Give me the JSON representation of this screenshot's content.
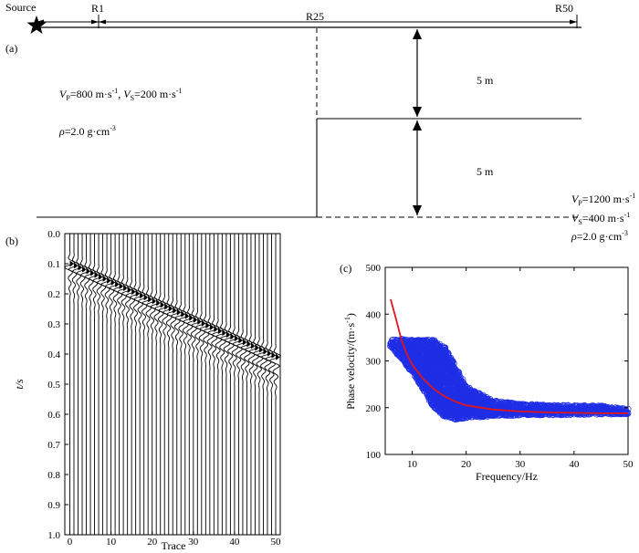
{
  "panel_a": {
    "label": "(a)",
    "source_label": "Source",
    "receivers": {
      "first": "R1",
      "middle": "R25",
      "last": "R50"
    },
    "layer1": {
      "vp": "800 m·s",
      "vs": "200 m·s",
      "rho": "=2.0 g·cm"
    },
    "layer2": {
      "vp": "=1200 m·s",
      "vs": "=400 m·s",
      "rho": "=2.0 g·cm"
    },
    "thickness_upper": "5 m",
    "thickness_lower": "5 m"
  },
  "panel_b": {
    "label": "(b)",
    "xlabel": "Trace",
    "ylabel": "t/s",
    "y_ticks": [
      "0.0",
      "0.1",
      "0.2",
      "0.3",
      "0.4",
      "0.5",
      "0.6",
      "0.7",
      "0.8",
      "0.9",
      "1.0"
    ],
    "x_ticks": [
      "0",
      "10",
      "20",
      "30",
      "40",
      "50"
    ],
    "num_traces": 51,
    "first_arrival": {
      "t_at_trace0": 0.09,
      "t_at_trace50": 0.4
    }
  },
  "chart_data": {
    "type": "scatter",
    "label": "(c)",
    "xlabel": "Frequency/Hz",
    "ylabel": "Phase velocity/(m·s",
    "xlim": [
      5,
      50
    ],
    "ylim": [
      100,
      500
    ],
    "x_ticks": [
      "10",
      "20",
      "30",
      "40",
      "50"
    ],
    "y_ticks": [
      "100",
      "200",
      "300",
      "400",
      "500"
    ],
    "series": [
      {
        "name": "dispersion points",
        "color": "#1f2ee6",
        "envelope": {
          "x": [
            6,
            8,
            10,
            12,
            14,
            16,
            18,
            20,
            25,
            30,
            35,
            40,
            45,
            50
          ],
          "upper": [
            345,
            348,
            345,
            345,
            345,
            330,
            290,
            245,
            215,
            208,
            206,
            205,
            204,
            197
          ],
          "lower": [
            330,
            305,
            275,
            240,
            200,
            180,
            175,
            178,
            182,
            183,
            184,
            185,
            186,
            186
          ]
        }
      },
      {
        "name": "theoretical curve",
        "color": "#e0161b",
        "x": [
          6,
          7,
          8,
          9,
          10,
          12,
          14,
          16,
          18,
          20,
          25,
          30,
          35,
          40,
          45,
          50
        ],
        "y": [
          432,
          390,
          345,
          315,
          292,
          262,
          240,
          224,
          213,
          205,
          196,
          192,
          190,
          189,
          188,
          188
        ]
      }
    ]
  }
}
